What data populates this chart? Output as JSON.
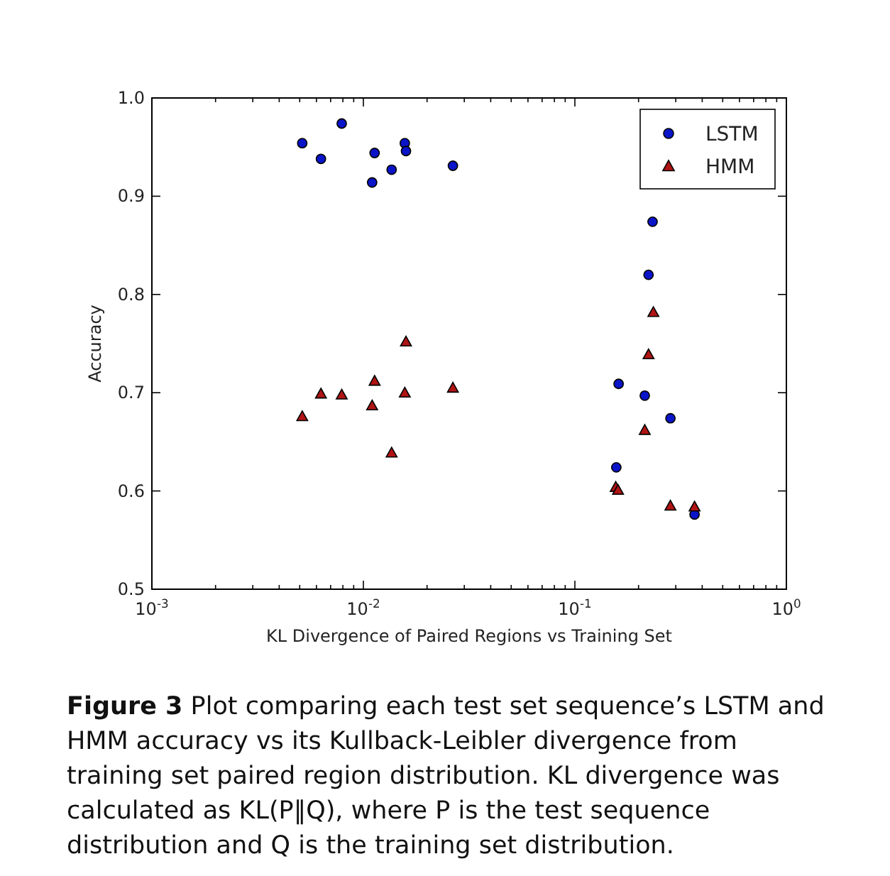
{
  "chart_data": {
    "type": "scatter",
    "xlabel": "KL Divergence of Paired Regions vs Training Set",
    "ylabel": "Accuracy",
    "log": "x",
    "xlim": [
      0.001,
      1
    ],
    "ylim": [
      0.5,
      1.0
    ],
    "xticks": [
      {
        "value": 0.001,
        "label": "10$^{-3}$"
      },
      {
        "value": 0.002,
        "label": null
      },
      {
        "value": 0.003,
        "label": null
      },
      {
        "value": 0.004,
        "label": null
      },
      {
        "value": 0.005,
        "label": null
      },
      {
        "value": 0.006,
        "label": null
      },
      {
        "value": 0.007,
        "label": null
      },
      {
        "value": 0.008,
        "label": null
      },
      {
        "value": 0.009,
        "label": null
      },
      {
        "value": 0.01,
        "label": "10$^{-2}$"
      },
      {
        "value": 0.02,
        "label": null
      },
      {
        "value": 0.03,
        "label": null
      },
      {
        "value": 0.04,
        "label": null
      },
      {
        "value": 0.05,
        "label": null
      },
      {
        "value": 0.06,
        "label": null
      },
      {
        "value": 0.07,
        "label": null
      },
      {
        "value": 0.08,
        "label": null
      },
      {
        "value": 0.09,
        "label": null
      },
      {
        "value": 0.1,
        "label": "10$^{-1}$"
      },
      {
        "value": 0.2,
        "label": null
      },
      {
        "value": 0.3,
        "label": null
      },
      {
        "value": 0.4,
        "label": null
      },
      {
        "value": 0.5,
        "label": null
      },
      {
        "value": 0.6,
        "label": null
      },
      {
        "value": 0.7,
        "label": null
      },
      {
        "value": 0.8,
        "label": null
      },
      {
        "value": 0.9,
        "label": null
      },
      {
        "value": 1,
        "label": "10$^{0}$"
      }
    ],
    "yticks": [
      {
        "value": 0.5,
        "label": "0.5"
      },
      {
        "value": 0.6,
        "label": "0.6"
      },
      {
        "value": 0.7,
        "label": "0.7"
      },
      {
        "value": 0.8,
        "label": "0.8"
      },
      {
        "value": 0.9,
        "label": "0.9"
      },
      {
        "value": 1.0,
        "label": "1.0"
      }
    ],
    "grid": false,
    "legend": "top right",
    "series": [
      {
        "name": "LSTM",
        "color": "#0a14c8",
        "marker": "circle",
        "x": [
          0.00514,
          0.0063,
          0.0079,
          0.011,
          0.0113,
          0.0136,
          0.0157,
          0.0159,
          0.0265,
          0.233,
          0.223,
          0.161,
          0.214,
          0.283,
          0.157,
          0.368
        ],
        "values": [
          0.954,
          0.938,
          0.974,
          0.914,
          0.944,
          0.927,
          0.954,
          0.946,
          0.931,
          0.874,
          0.82,
          0.709,
          0.697,
          0.674,
          0.624,
          0.576
        ]
      },
      {
        "name": "HMM",
        "color": "#b01414",
        "marker": "triangle",
        "x": [
          0.00514,
          0.0063,
          0.0079,
          0.011,
          0.0113,
          0.0136,
          0.0157,
          0.0159,
          0.0265,
          0.235,
          0.223,
          0.214,
          0.156,
          0.16,
          0.283,
          0.368
        ],
        "values": [
          0.676,
          0.699,
          0.698,
          0.687,
          0.712,
          0.639,
          0.7,
          0.752,
          0.705,
          0.782,
          0.739,
          0.662,
          0.604,
          0.601,
          0.585,
          0.584
        ]
      }
    ],
    "annotations": [
      "Figure 3",
      "Plot comparing each test set sequence’s LSTM and HMM accuracy vs its Kullback-Leibler divergence from training set paired region distribution. KL divergence was calculated as KL(P‖Q), where P is the test sequence distribution and Q is the training set distribution."
    ]
  }
}
